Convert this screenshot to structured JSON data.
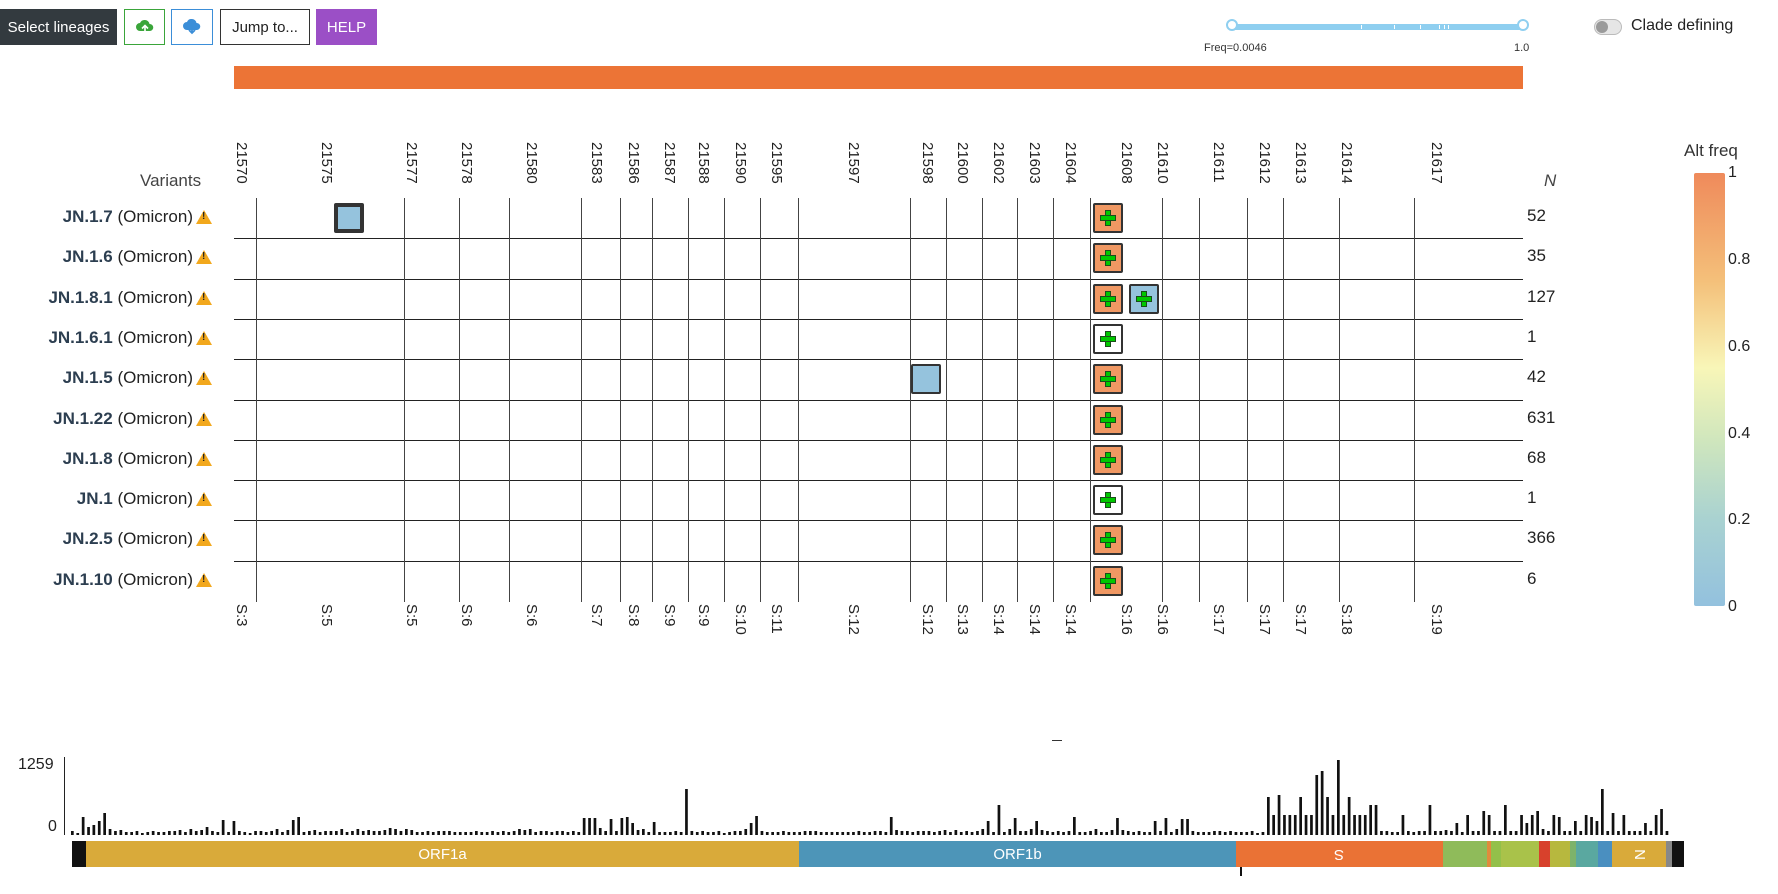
{
  "toolbar": {
    "select_lineages": "Select lineages",
    "upload_icon": "cloud-upload-icon",
    "download_icon": "cloud-download-icon",
    "jump_to": "Jump to...",
    "help": "HELP"
  },
  "freq_slider": {
    "min_label": "Freq=0.0046",
    "max_label": "1.0",
    "min_value": 0.0046,
    "max_value": 1.0
  },
  "clade_toggle": {
    "label": "Clade defining",
    "enabled": false
  },
  "grid": {
    "variants_header": "Variants",
    "n_header": "N",
    "positions": [
      {
        "pos": "21570",
        "gene": "S:3"
      },
      {
        "pos": "21575",
        "gene": "S:5"
      },
      {
        "pos": "21577",
        "gene": "S:5"
      },
      {
        "pos": "21578",
        "gene": "S:6"
      },
      {
        "pos": "21580",
        "gene": "S:6"
      },
      {
        "pos": "21583",
        "gene": "S:7"
      },
      {
        "pos": "21586",
        "gene": "S:8"
      },
      {
        "pos": "21587",
        "gene": "S:9"
      },
      {
        "pos": "21588",
        "gene": "S:9"
      },
      {
        "pos": "21590",
        "gene": "S:10"
      },
      {
        "pos": "21595",
        "gene": "S:11"
      },
      {
        "pos": "21597",
        "gene": "S:12"
      },
      {
        "pos": "21598",
        "gene": "S:12"
      },
      {
        "pos": "21600",
        "gene": "S:13"
      },
      {
        "pos": "21602",
        "gene": "S:14"
      },
      {
        "pos": "21603",
        "gene": "S:14"
      },
      {
        "pos": "21604",
        "gene": "S:14"
      },
      {
        "pos": "21608",
        "gene": "S:16"
      },
      {
        "pos": "21610",
        "gene": "S:16"
      },
      {
        "pos": "21611",
        "gene": "S:17"
      },
      {
        "pos": "21612",
        "gene": "S:17"
      },
      {
        "pos": "21613",
        "gene": "S:17"
      },
      {
        "pos": "21614",
        "gene": "S:18"
      },
      {
        "pos": "21617",
        "gene": "S:19"
      }
    ],
    "rows": [
      {
        "name": "JN.1.7",
        "suffix": "(Omicron)",
        "n": "52"
      },
      {
        "name": "JN.1.6",
        "suffix": "(Omicron)",
        "n": "35"
      },
      {
        "name": "JN.1.8.1",
        "suffix": "(Omicron)",
        "n": "127"
      },
      {
        "name": "JN.1.6.1",
        "suffix": "(Omicron)",
        "n": "1"
      },
      {
        "name": "JN.1.5",
        "suffix": "(Omicron)",
        "n": "42"
      },
      {
        "name": "JN.1.22",
        "suffix": "(Omicron)",
        "n": "631"
      },
      {
        "name": "JN.1.8",
        "suffix": "(Omicron)",
        "n": "68"
      },
      {
        "name": "JN.1",
        "suffix": "(Omicron)",
        "n": "1"
      },
      {
        "name": "JN.2.5",
        "suffix": "(Omicron)",
        "n": "366"
      },
      {
        "name": "JN.1.10",
        "suffix": "(Omicron)",
        "n": "6"
      }
    ],
    "cells": [
      {
        "row": 0,
        "col": 1,
        "alt_freq": 0.02,
        "insertion": false,
        "thick": true
      },
      {
        "row": 0,
        "col": 17,
        "alt_freq": 0.95,
        "insertion": true,
        "thick": false
      },
      {
        "row": 1,
        "col": 17,
        "alt_freq": 0.95,
        "insertion": true,
        "thick": false
      },
      {
        "row": 2,
        "col": 17,
        "alt_freq": 0.95,
        "insertion": true,
        "thick": false
      },
      {
        "row": 2,
        "col": 18,
        "alt_freq": 0.02,
        "insertion": true,
        "thick": false
      },
      {
        "row": 3,
        "col": 17,
        "alt_freq": null,
        "insertion": true,
        "thick": false
      },
      {
        "row": 4,
        "col": 12,
        "alt_freq": 0.02,
        "insertion": false,
        "thick": false
      },
      {
        "row": 4,
        "col": 17,
        "alt_freq": 0.95,
        "insertion": true,
        "thick": false
      },
      {
        "row": 5,
        "col": 17,
        "alt_freq": 0.95,
        "insertion": true,
        "thick": false
      },
      {
        "row": 6,
        "col": 17,
        "alt_freq": 0.95,
        "insertion": true,
        "thick": false
      },
      {
        "row": 7,
        "col": 17,
        "alt_freq": null,
        "insertion": true,
        "thick": false
      },
      {
        "row": 8,
        "col": 17,
        "alt_freq": 0.95,
        "insertion": true,
        "thick": false
      },
      {
        "row": 9,
        "col": 17,
        "alt_freq": 0.95,
        "insertion": true,
        "thick": false
      }
    ]
  },
  "colorbar": {
    "title": "Alt freq",
    "ticks": [
      "1",
      "0.8",
      "0.6",
      "0.4",
      "0.2",
      "0"
    ]
  },
  "genome": {
    "hist_max": "1259",
    "hist_min": "0",
    "orf1a": "ORF1a",
    "orf1b": "ORF1b",
    "s": "S",
    "n": "N"
  }
}
